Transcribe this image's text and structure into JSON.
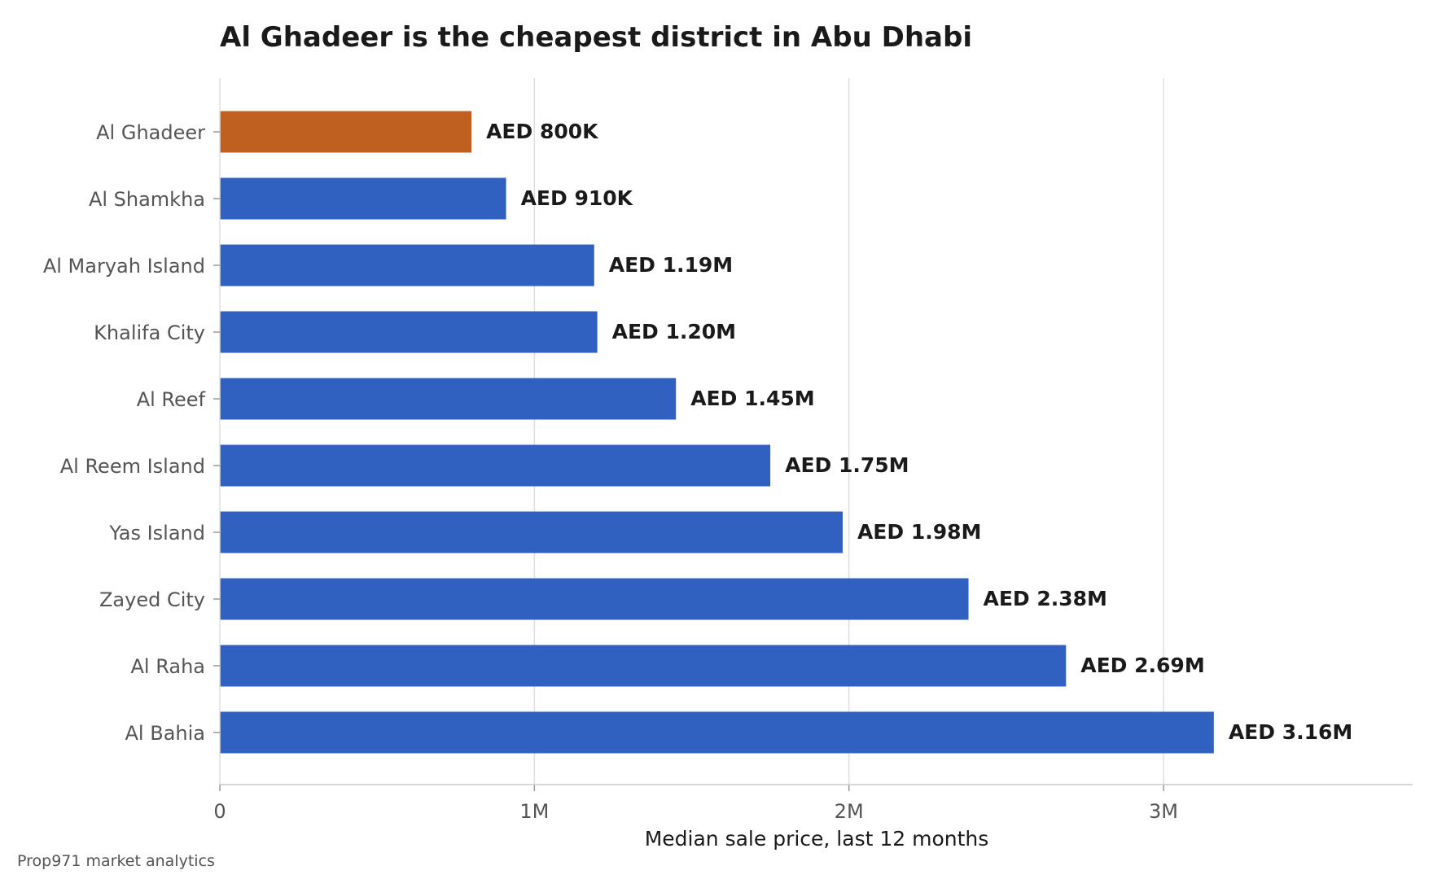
{
  "chart_data": {
    "type": "bar",
    "orientation": "horizontal",
    "title": "Al Ghadeer is the cheapest district in Abu Dhabi",
    "xlabel": "Median sale price, last 12 months",
    "ylabel": "",
    "source": "Prop971 market analytics",
    "categories": [
      "Al Ghadeer",
      "Al Shamkha",
      "Al Maryah Island",
      "Khalifa City",
      "Al Reef",
      "Al Reem Island",
      "Yas Island",
      "Zayed City",
      "Al Raha",
      "Al Bahia"
    ],
    "values": [
      800000,
      910000,
      1190000,
      1200000,
      1450000,
      1750000,
      1980000,
      2380000,
      2690000,
      3160000
    ],
    "value_labels": [
      "AED 800K",
      "AED 910K",
      "AED 1.19M",
      "AED 1.20M",
      "AED 1.45M",
      "AED 1.75M",
      "AED 1.98M",
      "AED 2.38M",
      "AED 2.69M",
      "AED 3.16M"
    ],
    "highlight": "Al Ghadeer",
    "xlim": [
      0,
      3792000
    ],
    "xticks": [
      0,
      1000000,
      2000000,
      3000000
    ],
    "xtick_labels": [
      "0",
      "1M",
      "2M",
      "3M"
    ],
    "grid": "vertical",
    "colors": {
      "bar": "#3060c0",
      "highlight": "#c06020",
      "grid": "#dddddd",
      "axis": "#cccccc"
    }
  }
}
